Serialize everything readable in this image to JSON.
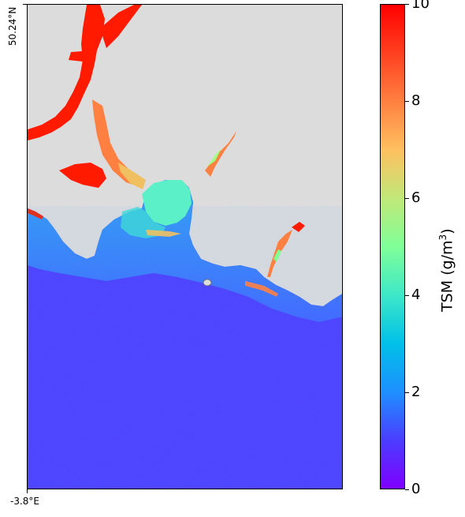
{
  "map": {
    "lat_label": "50.24°N",
    "lon_label": "-3.8°E",
    "land_color": "#dcdcdc",
    "sea_color": "#4b3dff"
  },
  "colorbar": {
    "title_prefix": "TSM (g/m",
    "title_superscript": "3",
    "title_suffix": ")",
    "range": [
      0,
      10
    ],
    "ticks": [
      "0",
      "2",
      "4",
      "6",
      "8",
      "10"
    ],
    "colormap": "rainbow"
  }
}
